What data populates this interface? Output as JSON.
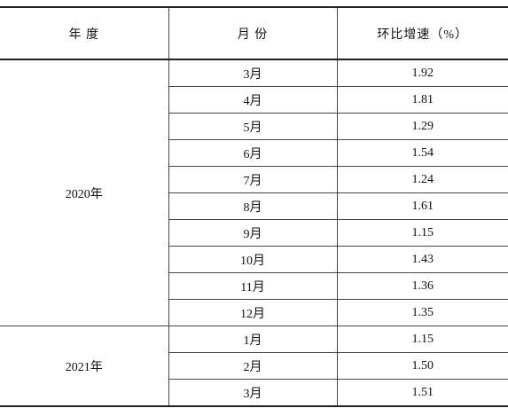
{
  "table": {
    "header": [
      "年 度",
      "月 份",
      "环比增速（%）"
    ],
    "groups": [
      {
        "year": "2020年",
        "rows": [
          [
            "3月",
            "1.92"
          ],
          [
            "4月",
            "1.81"
          ],
          [
            "5月",
            "1.29"
          ],
          [
            "6月",
            "1.54"
          ],
          [
            "7月",
            "1.24"
          ],
          [
            "8月",
            "1.61"
          ],
          [
            "9月",
            "1.15"
          ],
          [
            "10月",
            "1.43"
          ],
          [
            "11月",
            "1.36"
          ],
          [
            "12月",
            "1.35"
          ]
        ]
      },
      {
        "year": "2021年",
        "rows": [
          [
            "1月",
            "1.15"
          ],
          [
            "2月",
            "1.50"
          ],
          [
            "3月",
            "1.51"
          ]
        ]
      }
    ]
  }
}
